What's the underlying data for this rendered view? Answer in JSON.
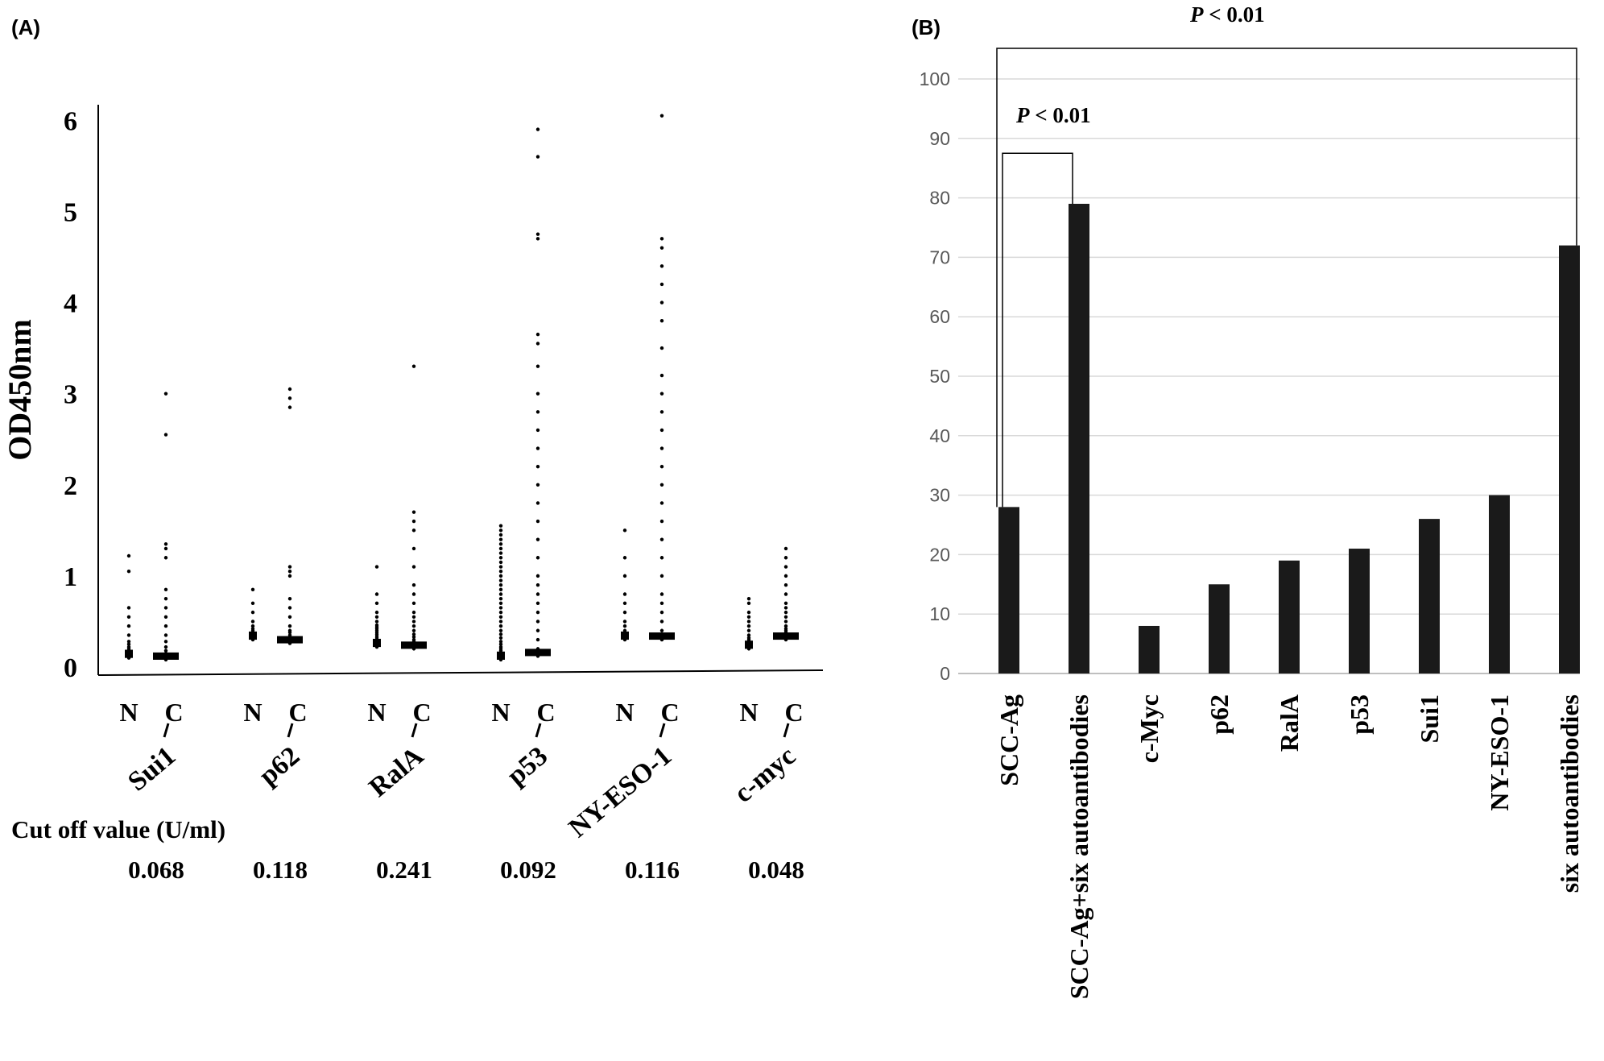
{
  "panels": {
    "a_label": "(A)",
    "b_label": "(B)"
  },
  "chart_data": [
    {
      "type": "scatter",
      "panel": "(A)",
      "ylabel": "OD450nm",
      "ylim": [
        0,
        6.1
      ],
      "yticks": [
        "0",
        "1",
        "2",
        "3",
        "4",
        "5",
        "6"
      ],
      "group_labels": [
        "N",
        "C"
      ],
      "cutoff_title": "Cut off value (U/ml)",
      "groups": [
        {
          "name": "Sui1",
          "cutoff": "0.068",
          "N": [
            0.1,
            0.11,
            0.12,
            0.13,
            0.14,
            0.15,
            0.16,
            0.17,
            0.18,
            0.2,
            0.22,
            0.25,
            0.28,
            0.35,
            0.45,
            0.55,
            0.65,
            1.05,
            1.22
          ],
          "C": [
            0.08,
            0.1,
            0.12,
            0.15,
            0.18,
            0.22,
            0.28,
            0.35,
            0.45,
            0.55,
            0.65,
            0.75,
            0.85,
            1.2,
            1.3,
            1.35,
            2.55,
            3.0
          ]
        },
        {
          "name": "p62",
          "cutoff": "0.118",
          "N": [
            0.3,
            0.31,
            0.32,
            0.33,
            0.34,
            0.35,
            0.36,
            0.37,
            0.38,
            0.4,
            0.42,
            0.45,
            0.5,
            0.6,
            0.7,
            0.85
          ],
          "C": [
            0.26,
            0.28,
            0.3,
            0.32,
            0.35,
            0.38,
            0.4,
            0.45,
            0.55,
            0.65,
            0.75,
            1.0,
            1.05,
            1.1,
            2.85,
            2.95,
            3.05
          ]
        },
        {
          "name": "RalA",
          "cutoff": "0.241",
          "N": [
            0.22,
            0.25,
            0.28,
            0.3,
            0.32,
            0.34,
            0.36,
            0.38,
            0.4,
            0.42,
            0.44,
            0.46,
            0.5,
            0.55,
            0.6,
            0.7,
            0.8,
            1.1
          ],
          "C": [
            0.2,
            0.22,
            0.25,
            0.28,
            0.3,
            0.33,
            0.36,
            0.4,
            0.45,
            0.5,
            0.55,
            0.6,
            0.7,
            0.8,
            0.9,
            1.1,
            1.3,
            1.5,
            1.6,
            1.7,
            3.3
          ]
        },
        {
          "name": "p53",
          "cutoff": "0.092",
          "N": [
            0.08,
            0.1,
            0.12,
            0.14,
            0.16,
            0.18,
            0.2,
            0.22,
            0.25,
            0.28,
            0.32,
            0.36,
            0.4,
            0.45,
            0.5,
            0.55,
            0.6,
            0.65,
            0.7,
            0.75,
            0.8,
            0.85,
            0.9,
            0.95,
            1.0,
            1.05,
            1.1,
            1.15,
            1.2,
            1.25,
            1.3,
            1.35,
            1.4,
            1.45,
            1.5,
            1.55
          ],
          "C": [
            0.12,
            0.2,
            0.3,
            0.4,
            0.5,
            0.6,
            0.7,
            0.8,
            0.9,
            1.0,
            1.2,
            1.4,
            1.6,
            1.8,
            2.0,
            2.2,
            2.4,
            2.6,
            2.8,
            3.0,
            3.3,
            3.55,
            3.65,
            4.7,
            4.75,
            5.6,
            5.9
          ]
        },
        {
          "name": "NY-ESO-1",
          "cutoff": "0.116",
          "N": [
            0.3,
            0.32,
            0.34,
            0.36,
            0.38,
            0.4,
            0.45,
            0.5,
            0.6,
            0.7,
            0.8,
            1.0,
            1.2,
            1.5
          ],
          "C": [
            0.3,
            0.35,
            0.4,
            0.5,
            0.6,
            0.7,
            0.8,
            1.0,
            1.2,
            1.4,
            1.6,
            1.8,
            2.0,
            2.2,
            2.4,
            2.6,
            2.8,
            3.0,
            3.2,
            3.5,
            3.8,
            4.0,
            4.2,
            4.4,
            4.6,
            4.7,
            6.05
          ]
        },
        {
          "name": "c-myc",
          "cutoff": "0.048",
          "N": [
            0.2,
            0.22,
            0.24,
            0.26,
            0.28,
            0.3,
            0.32,
            0.35,
            0.4,
            0.45,
            0.5,
            0.55,
            0.6,
            0.7,
            0.75
          ],
          "C": [
            0.3,
            0.32,
            0.34,
            0.36,
            0.38,
            0.4,
            0.42,
            0.45,
            0.5,
            0.55,
            0.6,
            0.65,
            0.7,
            0.8,
            0.9,
            1.0,
            1.1,
            1.2,
            1.3
          ]
        }
      ]
    },
    {
      "type": "bar",
      "panel": "(B)",
      "categories": [
        "SCC-Ag",
        "SCC-Ag+six autoantibodies",
        "c-Myc",
        "p62",
        "RalA",
        "p53",
        "Sui1",
        "NY-ESO-1",
        "six autoantibodies"
      ],
      "values": [
        28,
        79,
        8,
        15,
        19,
        21,
        26,
        30,
        72
      ],
      "ylim": [
        0,
        100
      ],
      "yticks": [
        "0",
        "10",
        "20",
        "30",
        "40",
        "50",
        "60",
        "70",
        "80",
        "90",
        "100"
      ],
      "grid": true,
      "bar_color": "#1a1a1a",
      "significance": [
        {
          "label_p": "P",
          "label_rest": " < 0.01",
          "from": "SCC-Ag",
          "to": "SCC-Ag+six autoantibodies"
        },
        {
          "label_p": "P",
          "label_rest": " < 0.01",
          "from": "SCC-Ag",
          "to": "six autoantibodies"
        }
      ]
    }
  ]
}
